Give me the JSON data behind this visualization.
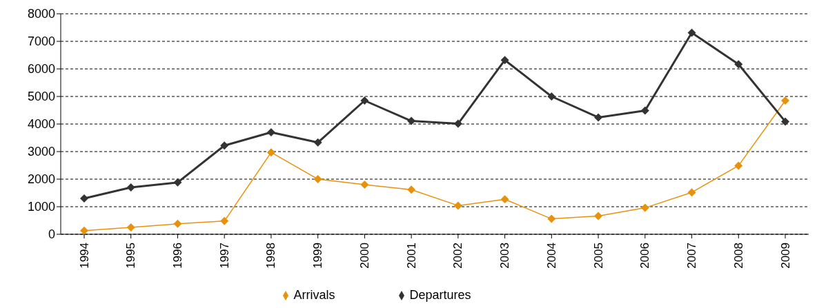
{
  "chart_data": {
    "type": "line",
    "categories": [
      "1994",
      "1995",
      "1996",
      "1997",
      "1998",
      "1999",
      "2000",
      "2001",
      "2002",
      "2003",
      "2004",
      "2005",
      "2006",
      "2007",
      "2008",
      "2009"
    ],
    "series": [
      {
        "name": "Arrivals",
        "color": "#e8920c",
        "values": [
          130,
          250,
          380,
          480,
          2970,
          2000,
          1800,
          1620,
          1040,
          1270,
          560,
          660,
          960,
          1520,
          2490,
          4850
        ]
      },
      {
        "name": "Departures",
        "color": "#333333",
        "values": [
          1300,
          1700,
          1880,
          3220,
          3700,
          3330,
          4850,
          4110,
          4010,
          6320,
          5000,
          4240,
          4490,
          7310,
          6170,
          4090
        ]
      }
    ],
    "ylim": [
      0,
      8000
    ],
    "yticks": [
      0,
      1000,
      2000,
      3000,
      4000,
      5000,
      6000,
      7000,
      8000
    ],
    "grid": "y",
    "legend": "bottom",
    "marker": "diamond",
    "line_style": "solid"
  }
}
